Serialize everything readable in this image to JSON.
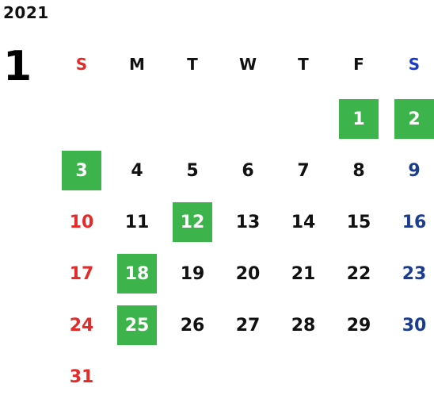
{
  "year": "2021",
  "month": "1",
  "weekdays": [
    "S",
    "M",
    "T",
    "W",
    "T",
    "F",
    "S"
  ],
  "weeks": [
    [
      "",
      "",
      "",
      "",
      "",
      "1",
      "2"
    ],
    [
      "3",
      "4",
      "5",
      "6",
      "7",
      "8",
      "9"
    ],
    [
      "10",
      "11",
      "12",
      "13",
      "14",
      "15",
      "16"
    ],
    [
      "17",
      "18",
      "19",
      "20",
      "21",
      "22",
      "23"
    ],
    [
      "24",
      "25",
      "26",
      "27",
      "28",
      "29",
      "30"
    ],
    [
      "31",
      "",
      "",
      "",
      "",
      "",
      ""
    ]
  ],
  "holidays": [
    "1",
    "2",
    "3",
    "12",
    "18",
    "25"
  ],
  "colors": {
    "sunday": "#e52a2a",
    "saturday_header": "#1a3bd0",
    "saturday": "#1a3d8f",
    "holiday_bg": "#3cb44b",
    "holiday_text": "#ffffff",
    "weekday": "#111111"
  }
}
